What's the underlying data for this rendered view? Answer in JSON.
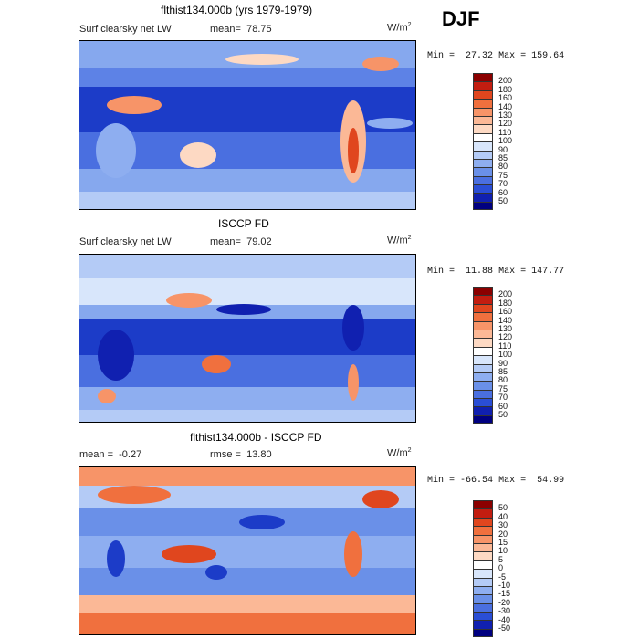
{
  "season": "DJF",
  "units_main": "W/m",
  "units_sup": "2",
  "panels": [
    {
      "title": "flthist134.000b (yrs 1979-1979)",
      "left_label": "Surf clearsky net LW",
      "mean_label": "mean=",
      "mean_value": "78.75",
      "min_label": "Min =",
      "min_value": "27.32",
      "max_label": "Max =",
      "max_value": "159.64",
      "levels": [
        "200",
        "180",
        "160",
        "140",
        "130",
        "120",
        "110",
        "100",
        "90",
        "85",
        "80",
        "75",
        "70",
        "60",
        "50"
      ]
    },
    {
      "title": "ISCCP FD",
      "left_label": "Surf clearsky net LW",
      "mean_label": "mean=",
      "mean_value": "79.02",
      "min_label": "Min =",
      "min_value": "11.88",
      "max_label": "Max =",
      "max_value": "147.77",
      "levels": [
        "200",
        "180",
        "160",
        "140",
        "130",
        "120",
        "110",
        "100",
        "90",
        "85",
        "80",
        "75",
        "70",
        "60",
        "50"
      ]
    },
    {
      "title": "flthist134.000b - ISCCP FD",
      "mean_label": "mean =",
      "mean_value": "-0.27",
      "rmse_label": "rmse =",
      "rmse_value": "13.80",
      "min_label": "Min =",
      "min_value": "-66.54",
      "max_label": "Max =",
      "max_value": "54.99",
      "levels": [
        "50",
        "40",
        "30",
        "20",
        "15",
        "10",
        "5",
        "0",
        "-5",
        "-10",
        "-15",
        "-20",
        "-30",
        "-40",
        "-50"
      ]
    }
  ],
  "colors": {
    "abs_scale": [
      "#8b0000",
      "#c21d10",
      "#e0461e",
      "#f0703e",
      "#f79468",
      "#fbb896",
      "#fdd9c3",
      "#ffffff",
      "#d8e6fb",
      "#b4cbf6",
      "#8eaef0",
      "#6a90e8",
      "#4a6fe0",
      "#2a4ed6",
      "#1020b0",
      "#000080"
    ],
    "diff_scale": [
      "#8b0000",
      "#c21d10",
      "#e0461e",
      "#f0703e",
      "#f79468",
      "#fbb896",
      "#fdd9c3",
      "#ffffff",
      "#d8e6fb",
      "#b4cbf6",
      "#8eaef0",
      "#6a90e8",
      "#4a6fe0",
      "#2a4ed6",
      "#1020b0",
      "#000080"
    ]
  }
}
